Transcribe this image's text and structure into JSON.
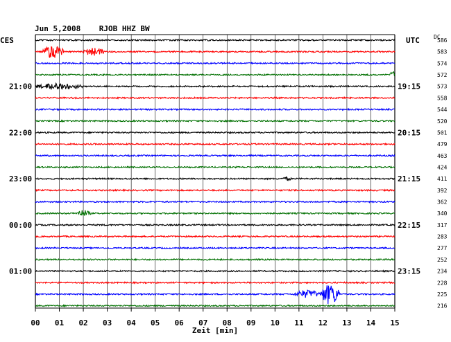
{
  "chart_data": {
    "type": "line",
    "title": "Jun 5,2008    RJOB HHZ BW",
    "left_axis_title": "CES",
    "right_axis_title": "UTC",
    "dc_header": "DC",
    "xlabel": "Zeit [min]",
    "xlim": [
      0,
      15
    ],
    "x_ticks": [
      "00",
      "01",
      "02",
      "03",
      "04",
      "05",
      "06",
      "07",
      "08",
      "09",
      "10",
      "11",
      "12",
      "13",
      "14",
      "15"
    ],
    "grid": true,
    "trace_colors": [
      "#000000",
      "#ff0000",
      "#0000ff",
      "#007000"
    ],
    "left_time_labels": [
      {
        "row": 4,
        "text": "21:00"
      },
      {
        "row": 8,
        "text": "22:00"
      },
      {
        "row": 12,
        "text": "23:00"
      },
      {
        "row": 16,
        "text": "00:00"
      },
      {
        "row": 20,
        "text": "01:00"
      }
    ],
    "right_time_labels": [
      {
        "row": 4,
        "text": "19:15"
      },
      {
        "row": 8,
        "text": "20:15"
      },
      {
        "row": 12,
        "text": "21:15"
      },
      {
        "row": 16,
        "text": "22:15"
      },
      {
        "row": 20,
        "text": "23:15"
      }
    ],
    "dc_offsets": [
      586,
      583,
      574,
      572,
      573,
      558,
      544,
      520,
      501,
      479,
      463,
      424,
      411,
      392,
      362,
      340,
      317,
      283,
      277,
      252,
      234,
      228,
      225,
      216
    ],
    "events": [
      {
        "row": 1,
        "start_min": 0.3,
        "end_min": 1.2,
        "amplitude": 9
      },
      {
        "row": 1,
        "start_min": 2.0,
        "end_min": 2.9,
        "amplitude": 6
      },
      {
        "row": 3,
        "start_min": 14.8,
        "end_min": 15.0,
        "amplitude": 6
      },
      {
        "row": 4,
        "start_min": 0.0,
        "end_min": 2.0,
        "amplitude": 5
      },
      {
        "row": 12,
        "start_min": 10.3,
        "end_min": 10.7,
        "amplitude": 3
      },
      {
        "row": 15,
        "start_min": 1.7,
        "end_min": 2.3,
        "amplitude": 5
      },
      {
        "row": 22,
        "start_min": 10.8,
        "end_min": 11.9,
        "amplitude": 6
      },
      {
        "row": 22,
        "start_min": 11.9,
        "end_min": 12.7,
        "amplitude": 15
      }
    ]
  }
}
